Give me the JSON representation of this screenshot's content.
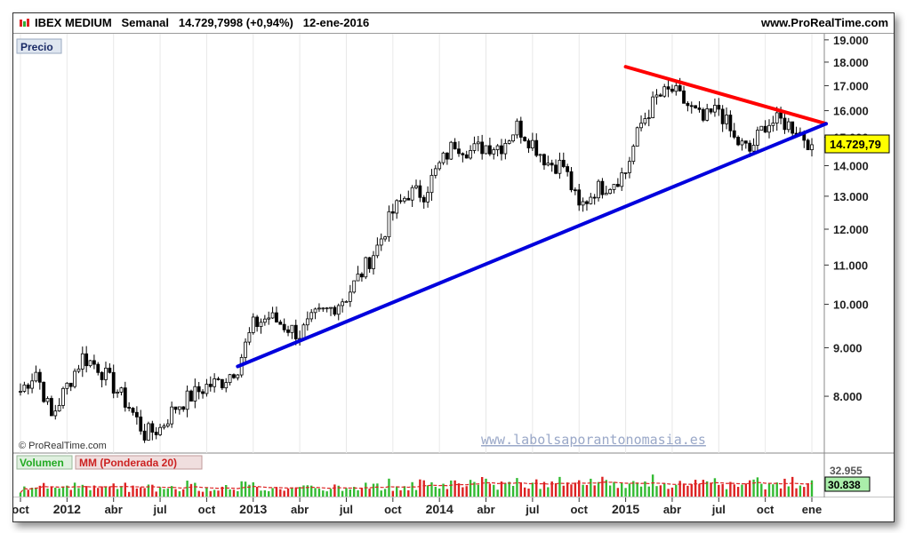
{
  "header": {
    "symbol": "IBEX MEDIUM",
    "period": "Semanal",
    "last_value": "14.729,7998",
    "change": "(+0,94%)",
    "date": "12-ene-2016",
    "site": "www.ProRealTime.com"
  },
  "panels": {
    "price_label": "Precio",
    "copyright": "© ProRealTime.com",
    "watermark": "www.labolsaporantonomasia.es",
    "volume_label": "Volumen",
    "ma_label": "MM (Ponderada 20)",
    "volume_value": "30.838",
    "ma_value_partial": "32.955"
  },
  "colors": {
    "up": "#ffffff",
    "down": "#000000",
    "vol_up": "#33bb33",
    "vol_down": "#dd2222",
    "ma": "#dd2222",
    "resistance": "#ff0000",
    "support": "#0000dd",
    "price_tag": "#ffff00"
  },
  "chart_data": {
    "type": "candlestick",
    "title": "IBEX MEDIUM Semanal",
    "ylim": [
      7000,
      19200
    ],
    "y_scale": "log",
    "y_ticks": [
      "19.000",
      "18.000",
      "17.000",
      "16.000",
      "15.000",
      "14.000",
      "13.000",
      "12.000",
      "11.000",
      "10.000",
      "9.000",
      "8.000"
    ],
    "last_price_label": "14.729,79",
    "x_tick_labels": [
      "oct",
      "2012",
      "abr",
      "jul",
      "oct",
      "2013",
      "abr",
      "jul",
      "oct",
      "2014",
      "abr",
      "jul",
      "oct",
      "2015",
      "abr",
      "jul",
      "oct",
      "ene"
    ],
    "price_anchors": [
      {
        "date": "oct 2011",
        "close": 8100
      },
      {
        "date": "nov 2011",
        "close": 8500
      },
      {
        "date": "dic 2011",
        "close": 7600
      },
      {
        "date": "ene 2012",
        "close": 8200
      },
      {
        "date": "feb 2012",
        "close": 8800
      },
      {
        "date": "mar 2012",
        "close": 8600
      },
      {
        "date": "abr 2012",
        "close": 8200
      },
      {
        "date": "may 2012",
        "close": 7800
      },
      {
        "date": "jun 2012",
        "close": 7300
      },
      {
        "date": "jul 2012",
        "close": 7400
      },
      {
        "date": "ago 2012",
        "close": 7800
      },
      {
        "date": "sep 2012",
        "close": 8000
      },
      {
        "date": "oct 2012",
        "close": 8200
      },
      {
        "date": "nov 2012",
        "close": 8300
      },
      {
        "date": "dic 2012",
        "close": 8600
      },
      {
        "date": "ene 2013",
        "close": 9500
      },
      {
        "date": "feb 2013",
        "close": 9700
      },
      {
        "date": "mar 2013",
        "close": 9500
      },
      {
        "date": "abr 2013",
        "close": 9300
      },
      {
        "date": "may 2013",
        "close": 9700
      },
      {
        "date": "jun 2013",
        "close": 9900
      },
      {
        "date": "jul 2013",
        "close": 10200
      },
      {
        "date": "ago 2013",
        "close": 10800
      },
      {
        "date": "sep 2013",
        "close": 11500
      },
      {
        "date": "oct 2013",
        "close": 12500
      },
      {
        "date": "nov 2013",
        "close": 13100
      },
      {
        "date": "dic 2013",
        "close": 13100
      },
      {
        "date": "ene 2014",
        "close": 14000
      },
      {
        "date": "feb 2014",
        "close": 14800
      },
      {
        "date": "mar 2014",
        "close": 14500
      },
      {
        "date": "abr 2014",
        "close": 14700
      },
      {
        "date": "may 2014",
        "close": 14700
      },
      {
        "date": "jun 2014",
        "close": 15400
      },
      {
        "date": "jul 2014",
        "close": 14800
      },
      {
        "date": "ago 2014",
        "close": 14100
      },
      {
        "date": "sep 2014",
        "close": 14000
      },
      {
        "date": "oct 2014",
        "close": 12600
      },
      {
        "date": "nov 2014",
        "close": 13200
      },
      {
        "date": "dic 2014",
        "close": 13400
      },
      {
        "date": "ene 2015",
        "close": 13800
      },
      {
        "date": "feb 2015",
        "close": 15500
      },
      {
        "date": "mar 2015",
        "close": 16500
      },
      {
        "date": "abr 2015",
        "close": 16800
      },
      {
        "date": "may 2015",
        "close": 16200
      },
      {
        "date": "jun 2015",
        "close": 15600
      },
      {
        "date": "jul 2015",
        "close": 16100
      },
      {
        "date": "ago 2015",
        "close": 14900
      },
      {
        "date": "sep 2015",
        "close": 14500
      },
      {
        "date": "oct 2015",
        "close": 15500
      },
      {
        "date": "nov 2015",
        "close": 15600
      },
      {
        "date": "dic 2015",
        "close": 15300
      },
      {
        "date": "ene 2016",
        "close": 14730
      }
    ],
    "volume_scale_relative": true,
    "trendlines": [
      {
        "name": "resistance",
        "color": "red",
        "from": {
          "date": "ene 2015",
          "value": 17800
        },
        "to": {
          "date": "ene 2016",
          "value": 15500
        }
      },
      {
        "name": "support",
        "color": "blue",
        "from": {
          "date": "dic 2012",
          "value": 8600
        },
        "to": {
          "date": "ene 2016",
          "value": 15500
        }
      }
    ]
  }
}
